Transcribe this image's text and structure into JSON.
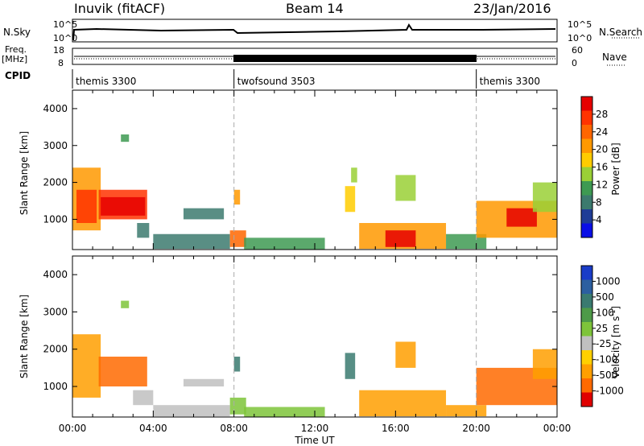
{
  "header": {
    "station": "Inuvik (fitACF)",
    "beam": "Beam 14",
    "date": "23/Jan/2016"
  },
  "panels": {
    "nsky_label": "N.Sky",
    "nsearch_label": "N.Search",
    "log_top_label": "10^5",
    "log_bottom_label": "10^0",
    "freq_label": "Freq.",
    "freq_unit": "[MHz]",
    "freq_top": "18",
    "freq_bottom": "8",
    "nave_label": "Nave",
    "nave_top": "60",
    "nave_bottom": "0",
    "cpid_label": "CPID"
  },
  "cpid_segments": [
    {
      "name": "themis 3300",
      "start_hour": 0,
      "end_hour": 8
    },
    {
      "name": "twofsound 3503",
      "start_hour": 8,
      "end_hour": 20
    },
    {
      "name": "themis 3300",
      "start_hour": 20,
      "end_hour": 24
    }
  ],
  "colorbars": {
    "power": {
      "label": "Power [dB]",
      "ticks": [
        "4",
        "8",
        "12",
        "16",
        "20",
        "24",
        "28"
      ],
      "colors": [
        "#0a0ee6",
        "#1e3c96",
        "#3c7a6e",
        "#3e9a52",
        "#9ad036",
        "#ffcc00",
        "#ff9900",
        "#ff6600",
        "#ff3300",
        "#e60000"
      ]
    },
    "velocity": {
      "label": "Velocity [m s^-1]",
      "ticks": [
        "1000",
        "500",
        "100",
        "25",
        "-25",
        "-100",
        "-500",
        "-1000"
      ],
      "colors": [
        "#1a3cc8",
        "#2c5fa0",
        "#3a7a70",
        "#4e9a48",
        "#7ec43a",
        "#c0c0c0",
        "#ffd000",
        "#ff9f00",
        "#ff6a00",
        "#e00000"
      ]
    }
  },
  "chart_data": {
    "type": "heatmap",
    "x_ticks": [
      "00:00",
      "04:00",
      "08:00",
      "12:00",
      "16:00",
      "20:00",
      "00:00"
    ],
    "xlabel": "Time UT",
    "ylabel": "Slant Range [km]",
    "y_ticks": [
      "1000",
      "2000",
      "3000",
      "4000"
    ],
    "x_range_hours": [
      0,
      24
    ],
    "y_range_km": [
      180,
      4500
    ],
    "power_patches": [
      {
        "t0": 0.0,
        "t1": 1.4,
        "r0": 700,
        "r1": 2400,
        "db": 18
      },
      {
        "t0": 0.2,
        "t1": 1.2,
        "r0": 900,
        "r1": 1800,
        "db": 24
      },
      {
        "t0": 1.3,
        "t1": 3.7,
        "r0": 1000,
        "r1": 1800,
        "db": 26
      },
      {
        "t0": 1.4,
        "t1": 3.6,
        "r0": 1100,
        "r1": 1600,
        "db": 29
      },
      {
        "t0": 2.4,
        "t1": 2.8,
        "r0": 3100,
        "r1": 3300,
        "db": 10
      },
      {
        "t0": 3.2,
        "t1": 3.8,
        "r0": 500,
        "r1": 900,
        "db": 8
      },
      {
        "t0": 4.0,
        "t1": 7.8,
        "r0": 200,
        "r1": 600,
        "db": 8
      },
      {
        "t0": 5.5,
        "t1": 7.5,
        "r0": 1000,
        "r1": 1300,
        "db": 6
      },
      {
        "t0": 7.8,
        "t1": 8.6,
        "r0": 250,
        "r1": 700,
        "db": 22
      },
      {
        "t0": 8.0,
        "t1": 8.3,
        "r0": 1400,
        "r1": 1800,
        "db": 18
      },
      {
        "t0": 8.5,
        "t1": 12.5,
        "r0": 180,
        "r1": 500,
        "db": 9
      },
      {
        "t0": 13.5,
        "t1": 14.0,
        "r0": 1200,
        "r1": 1900,
        "db": 16
      },
      {
        "t0": 13.8,
        "t1": 14.1,
        "r0": 2000,
        "r1": 2400,
        "db": 12
      },
      {
        "t0": 14.2,
        "t1": 18.5,
        "r0": 200,
        "r1": 900,
        "db": 20
      },
      {
        "t0": 15.5,
        "t1": 17.0,
        "r0": 250,
        "r1": 700,
        "db": 27
      },
      {
        "t0": 16.0,
        "t1": 17.0,
        "r0": 1500,
        "r1": 2200,
        "db": 14
      },
      {
        "t0": 18.5,
        "t1": 20.5,
        "r0": 200,
        "r1": 600,
        "db": 10
      },
      {
        "t0": 20.0,
        "t1": 24.0,
        "r0": 500,
        "r1": 1500,
        "db": 18
      },
      {
        "t0": 21.5,
        "t1": 23.0,
        "r0": 800,
        "r1": 1300,
        "db": 28
      },
      {
        "t0": 22.8,
        "t1": 24.0,
        "r0": 1200,
        "r1": 2000,
        "db": 14
      }
    ],
    "velocity_patches": [
      {
        "t0": 0.0,
        "t1": 1.4,
        "r0": 700,
        "r1": 2400,
        "v": -150
      },
      {
        "t0": 1.3,
        "t1": 3.7,
        "r0": 1000,
        "r1": 1800,
        "v": -300
      },
      {
        "t0": 2.4,
        "t1": 2.8,
        "r0": 3100,
        "r1": 3300,
        "v": 60
      },
      {
        "t0": 3.0,
        "t1": 4.0,
        "r0": 500,
        "r1": 900,
        "v": 10
      },
      {
        "t0": 4.0,
        "t1": 7.8,
        "r0": 200,
        "r1": 500,
        "v": -20
      },
      {
        "t0": 5.5,
        "t1": 7.5,
        "r0": 1000,
        "r1": 1200,
        "v": 15
      },
      {
        "t0": 7.8,
        "t1": 8.6,
        "r0": 250,
        "r1": 700,
        "v": 50
      },
      {
        "t0": 8.0,
        "t1": 8.3,
        "r0": 1400,
        "r1": 1800,
        "v": 300
      },
      {
        "t0": 8.5,
        "t1": 12.5,
        "r0": 180,
        "r1": 450,
        "v": 80
      },
      {
        "t0": 13.5,
        "t1": 14.0,
        "r0": 1200,
        "r1": 1900,
        "v": 400
      },
      {
        "t0": 14.2,
        "t1": 18.5,
        "r0": 200,
        "r1": 900,
        "v": -200
      },
      {
        "t0": 16.0,
        "t1": 17.0,
        "r0": 1500,
        "r1": 2200,
        "v": -150
      },
      {
        "t0": 18.5,
        "t1": 20.5,
        "r0": 200,
        "r1": 500,
        "v": -120
      },
      {
        "t0": 20.0,
        "t1": 24.0,
        "r0": 500,
        "r1": 1500,
        "v": -400
      },
      {
        "t0": 22.8,
        "t1": 24.0,
        "r0": 1200,
        "r1": 2000,
        "v": -180
      }
    ]
  }
}
